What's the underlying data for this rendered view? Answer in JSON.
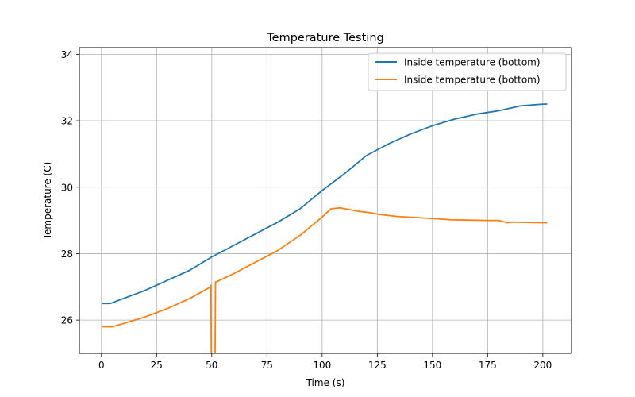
{
  "chart_data": {
    "type": "line",
    "title": "Temperature Testing",
    "xlabel": "Time (s)",
    "ylabel": "Temperature (C)",
    "xlim": [
      -10,
      213
    ],
    "ylim": [
      25.0,
      34.2
    ],
    "xticks": [
      0,
      25,
      50,
      75,
      100,
      125,
      150,
      175,
      200
    ],
    "yticks": [
      26,
      28,
      30,
      32,
      34
    ],
    "grid": true,
    "legend_position": "top-right",
    "series": [
      {
        "name": "Inside temperature (bottom)",
        "color": "#1f77b4",
        "x": [
          0,
          4,
          10,
          20,
          30,
          40,
          50,
          60,
          70,
          80,
          90,
          100,
          110,
          120,
          130,
          140,
          150,
          160,
          170,
          180,
          190,
          200,
          202
        ],
        "y": [
          26.5,
          26.5,
          26.65,
          26.9,
          27.2,
          27.5,
          27.9,
          28.25,
          28.6,
          28.95,
          29.35,
          29.9,
          30.4,
          30.95,
          31.3,
          31.6,
          31.85,
          32.05,
          32.2,
          32.3,
          32.45,
          32.5,
          32.5
        ]
      },
      {
        "name": "Inside temperature (bottom)",
        "color": "#ff7f0e",
        "x": [
          0,
          5,
          10,
          20,
          30,
          40,
          49.5,
          49.6,
          49.8,
          51.5,
          51.7,
          52,
          60,
          70,
          80,
          90,
          100,
          104,
          108,
          112,
          116,
          122,
          126,
          134,
          144,
          152,
          158,
          166,
          174,
          180,
          184,
          186,
          202
        ],
        "y": [
          25.8,
          25.8,
          25.9,
          26.1,
          26.35,
          26.65,
          27.0,
          27.05,
          24.9,
          24.9,
          27.15,
          27.15,
          27.4,
          27.75,
          28.1,
          28.55,
          29.1,
          29.35,
          29.38,
          29.33,
          29.28,
          29.23,
          29.18,
          29.12,
          29.08,
          29.05,
          29.02,
          29.01,
          29.0,
          29.0,
          28.93,
          28.95,
          28.93
        ]
      }
    ]
  }
}
